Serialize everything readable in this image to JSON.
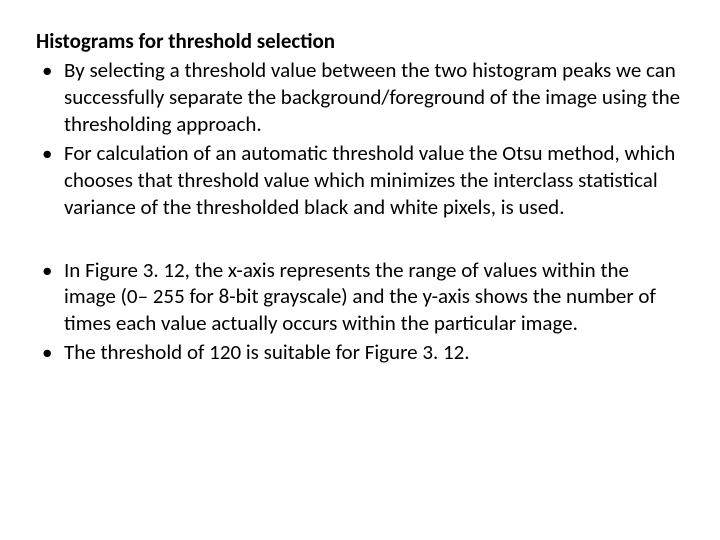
{
  "heading": "Histograms for threshold selection",
  "bullets_top": [
    "By selecting a threshold value between the two histogram peaks we can successfully separate the background/foreground of the image using the thresholding approach.",
    "For calculation of an automatic threshold value the Otsu method, which chooses that threshold value which minimizes the interclass statistical variance of the thresholded black and white pixels, is used."
  ],
  "bullets_bottom": [
    "In Figure 3. 12, the x-axis represents the range of values within the image (0– 255 for 8-bit grayscale) and the y-axis shows the number of times each value actually occurs within the particular image.",
    "The threshold of 120 is suitable for Figure 3. 12."
  ],
  "text_color": "#000000",
  "background_color": "#ffffff",
  "font_family": "Calibri, Arial, sans-serif",
  "heading_fontsize": 21,
  "body_fontsize": 21,
  "heading_fontweight": "bold"
}
